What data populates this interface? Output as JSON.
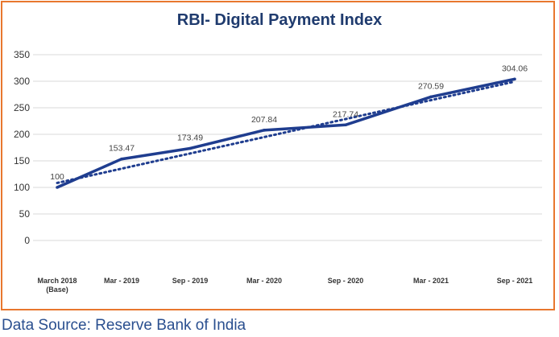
{
  "chart_data": {
    "type": "line",
    "title": "RBI- Digital Payment Index",
    "categories": [
      [
        "March 2018",
        "(Base)"
      ],
      [
        "Mar - 2019"
      ],
      [
        "Sep - 2019"
      ],
      [
        "Mar - 2020"
      ],
      [
        "Sep - 2020"
      ],
      [
        "Mar - 2021"
      ],
      [
        "Sep - 2021"
      ]
    ],
    "series": [
      {
        "values": [
          100,
          153.47,
          173.49,
          207.84,
          217.74,
          270.59,
          304.06
        ],
        "color": "#1f3d8f",
        "style": "solid"
      }
    ],
    "trendline": {
      "style": "dotted",
      "color": "#1f3d8f"
    },
    "data_labels": [
      "100",
      "153.47",
      "173.49",
      "207.84",
      "217.74",
      "270.59",
      "304.06"
    ],
    "y_ticks": [
      0,
      50,
      100,
      150,
      200,
      250,
      300,
      350
    ],
    "ylim": [
      0,
      350
    ],
    "grid": "horizontal",
    "xlabel": "",
    "ylabel": ""
  },
  "source": "Data Source: Reserve Bank of India",
  "colors": {
    "border": "#e8772e",
    "title": "#1f3b6e",
    "source_text": "#2a4f8f"
  }
}
